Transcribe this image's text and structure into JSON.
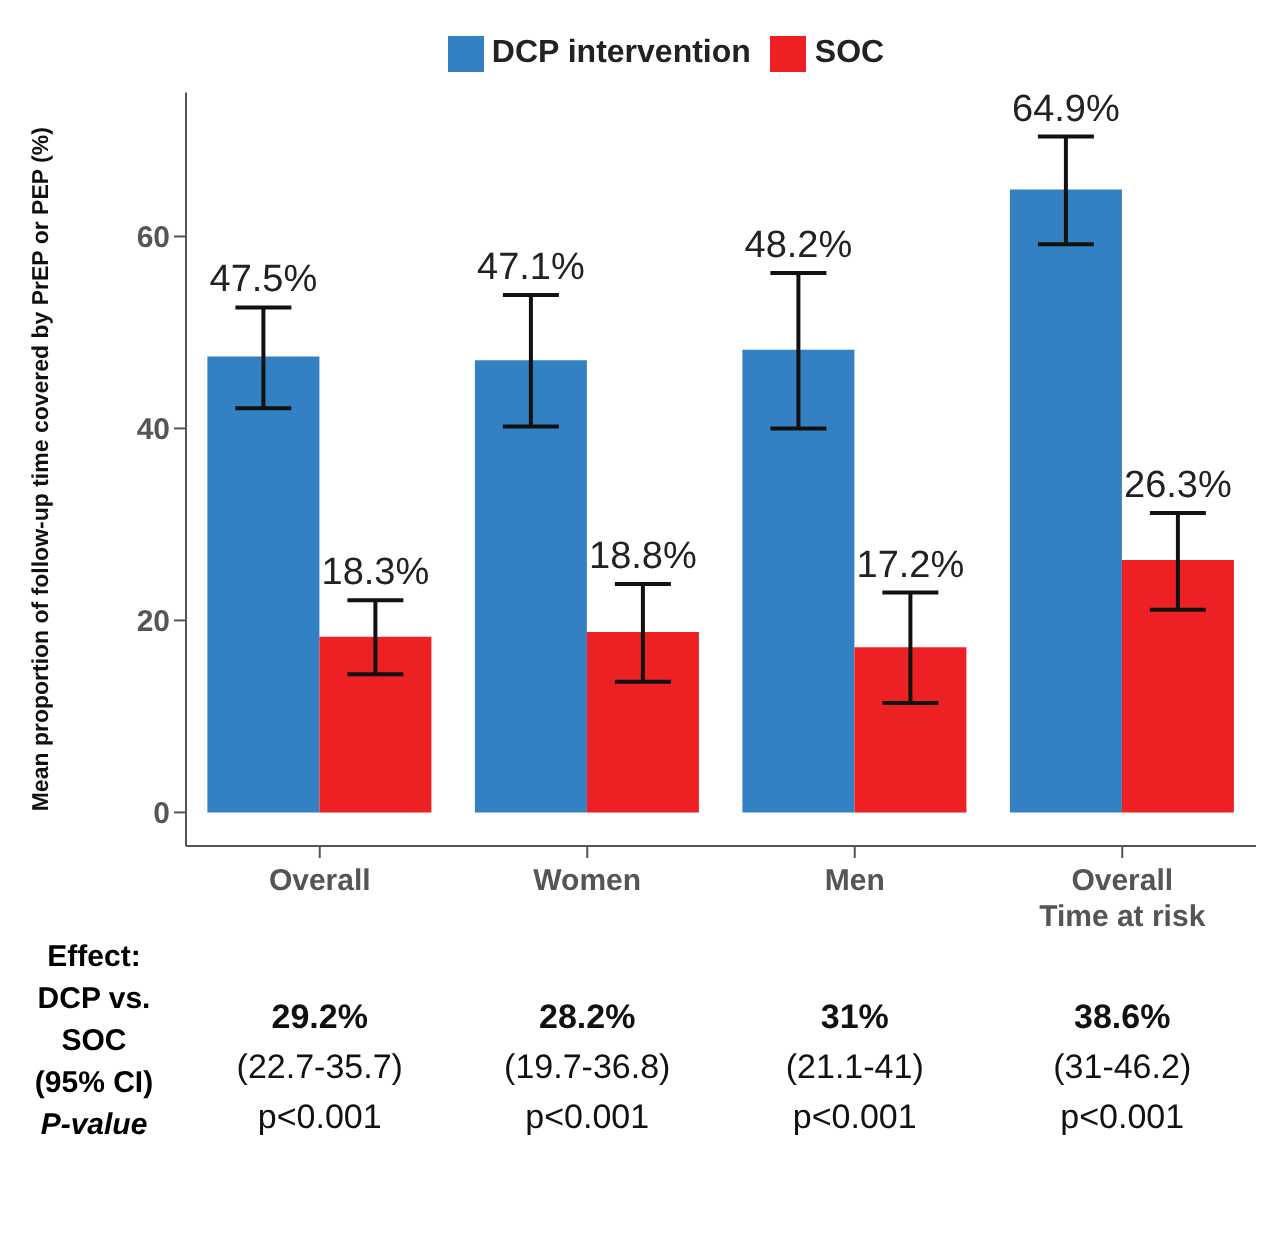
{
  "chart_data": {
    "type": "bar",
    "ylabel": "Mean proportion of follow-up time covered by PrEP or PEP (%)",
    "categories": [
      "Overall",
      "Women",
      "Men",
      "Overall\nTime at risk"
    ],
    "series": [
      {
        "name": "DCP intervention",
        "color": "#3380c2",
        "values": [
          47.5,
          47.1,
          48.2,
          64.9
        ],
        "errors": [
          [
            42.1,
            52.6
          ],
          [
            40.2,
            53.9
          ],
          [
            40.0,
            56.2
          ],
          [
            59.2,
            70.4
          ]
        ],
        "value_labels": [
          "47.5%",
          "47.1%",
          "48.2%",
          "64.9%"
        ]
      },
      {
        "name": "SOC",
        "color": "#ed2024",
        "values": [
          18.3,
          18.8,
          17.2,
          26.3
        ],
        "errors": [
          [
            14.4,
            22.1
          ],
          [
            13.6,
            23.8
          ],
          [
            11.4,
            22.9
          ],
          [
            21.1,
            31.2
          ]
        ],
        "value_labels": [
          "18.3%",
          "18.8%",
          "17.2%",
          "26.3%"
        ]
      }
    ],
    "ylim": [
      -3.5,
      75
    ],
    "yticks": [
      0,
      20,
      40,
      60
    ],
    "grid": false,
    "legend": "top",
    "annotations": [
      "Effect:\nDCP vs.\nSOC\n(95% CI)\nP-value",
      "29.2%\n(22.7-35.7)\np<0.001",
      "28.2%\n(19.7-36.8)\np<0.001",
      "31%\n(21.1-41)\np<0.001",
      "38.6%\n(31-46.2)\np<0.001"
    ]
  }
}
